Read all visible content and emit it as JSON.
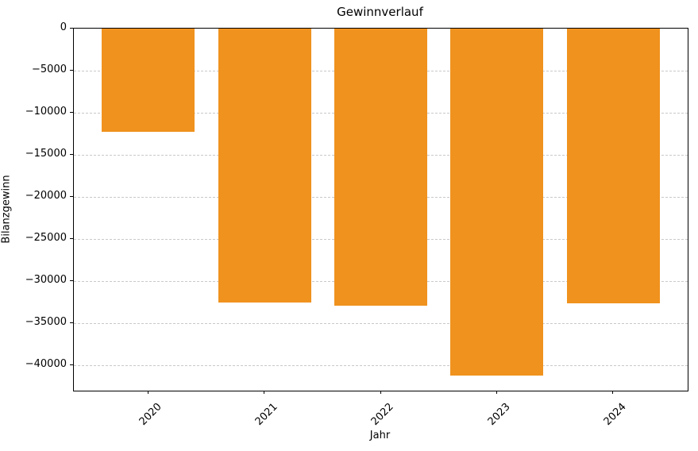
{
  "chart_data": {
    "type": "bar",
    "title": "Gewinnverlauf",
    "xlabel": "Jahr",
    "ylabel": "Bilanzgewinn",
    "categories": [
      "2020",
      "2021",
      "2022",
      "2023",
      "2024"
    ],
    "values": [
      -12300,
      -32500,
      -32870,
      -41250,
      -32670
    ],
    "ylim": [
      -43000,
      0
    ],
    "yticks": [
      0,
      -5000,
      -10000,
      -15000,
      -20000,
      -25000,
      -30000,
      -35000,
      -40000
    ],
    "xtick_rotation_deg": 45,
    "bar_color": "#f0921e",
    "gridline_color": "#c9c9c9",
    "grid": "horizontal dashed",
    "legend": "none",
    "background_color": "#ffffff",
    "axis_color": "#000000"
  }
}
